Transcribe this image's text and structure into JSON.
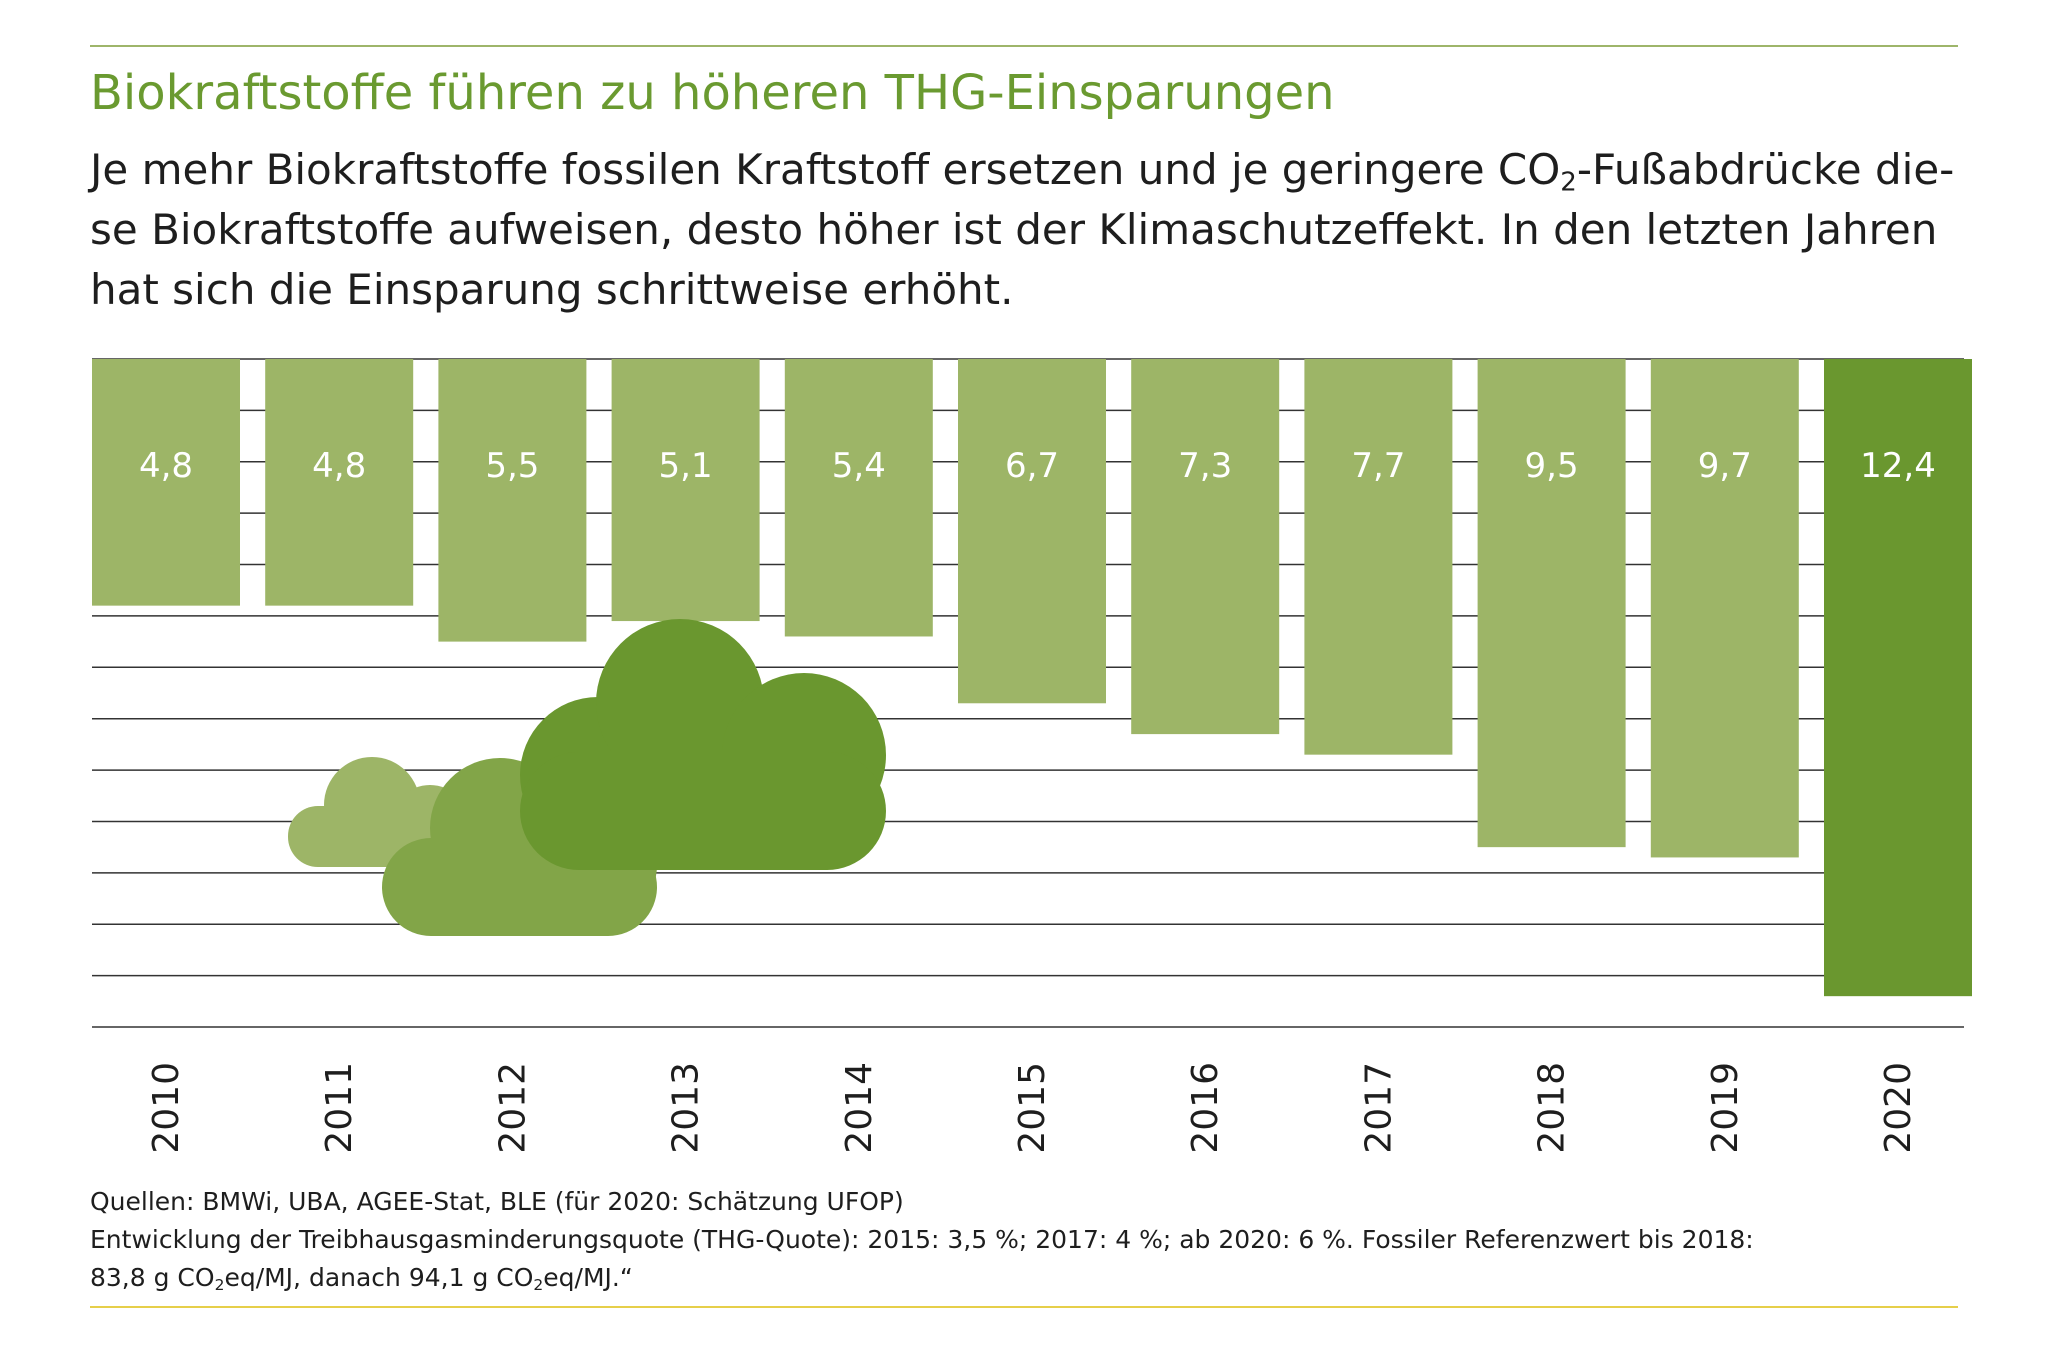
{
  "header": {
    "title": "Biokraftstoffe führen zu höheren THG-Einsparungen",
    "subtitle_part1": "Je mehr Biokraftstoffe fossilen Kraftstoff ersetzen und je geringere CO",
    "subtitle_sub": "2",
    "subtitle_part2": "-Fußabdrücke die-se Biokraftstoffe aufweisen, desto höher ist der Klimaschutzeffekt. In den letzten Jahren hat sich die Einsparung schrittweise erhöht."
  },
  "chart_data": {
    "type": "bar",
    "orientation": "vertical, hanging from top",
    "categories": [
      "2010",
      "2011",
      "2012",
      "2013",
      "2014",
      "2015",
      "2016",
      "2017",
      "2018",
      "2019",
      "2020"
    ],
    "values": [
      4.8,
      4.8,
      5.5,
      5.1,
      5.4,
      6.7,
      7.3,
      7.7,
      9.5,
      9.7,
      12.4
    ],
    "data_labels": [
      "4,8",
      "4,8",
      "5,5",
      "5,1",
      "5,4",
      "6,7",
      "7,3",
      "7,7",
      "9,5",
      "9,7",
      "12,4"
    ],
    "ylim": [
      0,
      13
    ],
    "gridlines": true,
    "colors": {
      "bar": "#9db567",
      "highlight_bar": "#6a972f",
      "grid": "#333333",
      "label": "#ffffff"
    },
    "highlight_category": "2020"
  },
  "decoration": {
    "icons": [
      "cloud-icon-small",
      "cloud-icon-medium",
      "cloud-icon-large"
    ],
    "colors": [
      "#9db567",
      "#82a548",
      "#6a972f"
    ]
  },
  "footnote": {
    "sources": "Quellen: BMWi, UBA, AGEE-Stat, BLE (für 2020: Schätzung UFOP)",
    "line2": "Entwicklung der Treibhausgasminderungsquote (THG-Quote): 2015: 3,5 %; 2017: 4 %; ab 2020: 6 %. Fossiler Referenzwert bis 2018:",
    "line3_a": "83,8 g CO",
    "line3_sub1": "2",
    "line3_b": "eq/MJ, danach 94,1 g CO",
    "line3_sub2": "2",
    "line3_c": "eq/MJ.“"
  }
}
